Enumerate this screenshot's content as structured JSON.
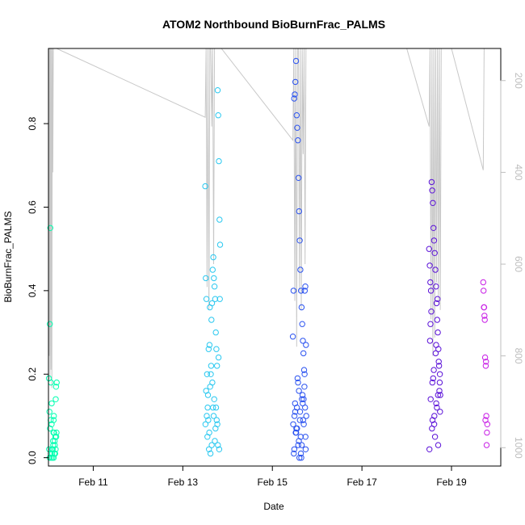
{
  "chart_data": {
    "type": "scatter",
    "title": "ATOM2 Northbound BioBurnFrac_PALMS",
    "xlabel": "Date",
    "ylabel": "BioBurnFrac_PALMS",
    "xlim": [
      "2017-02-10",
      "2017-02-20.1"
    ],
    "ylim": [
      -0.02,
      0.98
    ],
    "xticks": [
      {
        "value": "2017-02-11",
        "label": "Feb 11"
      },
      {
        "value": "2017-02-13",
        "label": "Feb 13"
      },
      {
        "value": "2017-02-15",
        "label": "Feb 15"
      },
      {
        "value": "2017-02-17",
        "label": "Feb 17"
      },
      {
        "value": "2017-02-19",
        "label": "Feb 19"
      }
    ],
    "yticks": [
      0.0,
      0.2,
      0.4,
      0.6,
      0.8
    ],
    "ytick_labels": [
      "0.0",
      "0.2",
      "0.4",
      "0.6",
      "0.8"
    ],
    "y2": {
      "quantity": "pressure",
      "range": [
        1040,
        130
      ],
      "ticks": [
        200,
        400,
        600,
        800,
        1000
      ],
      "tick_labels": [
        "200",
        "400",
        "600",
        "800",
        "1000"
      ],
      "color": "#bdbdbd"
    },
    "grid": false,
    "legend": "none",
    "series": [
      {
        "color": "#00ffb0",
        "x": [
          "2017-02-10T00:15",
          "2017-02-10T00:30",
          "2017-02-10T00:45",
          "2017-02-10T01:00",
          "2017-02-10T01:20",
          "2017-02-10T01:40",
          "2017-02-10T01:55",
          "2017-02-10T02:10",
          "2017-02-10T02:25",
          "2017-02-10T02:40",
          "2017-02-10T02:55",
          "2017-02-10T03:10",
          "2017-02-10T03:25",
          "2017-02-10T03:40",
          "2017-02-10T03:55",
          "2017-02-10T04:05",
          "2017-02-10T04:20",
          "2017-02-10T00:20",
          "2017-02-10T00:50",
          "2017-02-10T01:10",
          "2017-02-10T01:30",
          "2017-02-10T02:00",
          "2017-02-10T02:30",
          "2017-02-10T02:50",
          "2017-02-10T03:20",
          "2017-02-10T03:50",
          "2017-02-10T04:10",
          "2017-02-10T00:40",
          "2017-02-10T01:15",
          "2017-02-10T02:15",
          "2017-02-10T03:00",
          "2017-02-10T03:35",
          "2017-02-10T04:25",
          "2017-02-10T01:45",
          "2017-02-10T02:45"
        ],
        "y": [
          0.19,
          0.11,
          0.32,
          0.55,
          0.18,
          0.08,
          0.02,
          0.0,
          0.04,
          0.06,
          0.1,
          0.01,
          0.03,
          0.05,
          0.14,
          0.17,
          0.06,
          0.02,
          0.07,
          0.09,
          0.0,
          0.01,
          0.03,
          0.0,
          0.04,
          0.02,
          0.05,
          0.0,
          0.01,
          0.02,
          0.06,
          0.01,
          0.18,
          0.13,
          0.09
        ]
      },
      {
        "color": "#29c8f0",
        "x": [
          "2017-02-13T12:00",
          "2017-02-13T12:20",
          "2017-02-13T12:40",
          "2017-02-13T13:00",
          "2017-02-13T13:20",
          "2017-02-13T13:40",
          "2017-02-13T14:00",
          "2017-02-13T14:20",
          "2017-02-13T14:40",
          "2017-02-13T15:00",
          "2017-02-13T15:20",
          "2017-02-13T15:40",
          "2017-02-13T16:00",
          "2017-02-13T16:20",
          "2017-02-13T16:40",
          "2017-02-13T17:00",
          "2017-02-13T17:20",
          "2017-02-13T17:40",
          "2017-02-13T18:00",
          "2017-02-13T18:20",
          "2017-02-13T18:40",
          "2017-02-13T19:00",
          "2017-02-13T19:20",
          "2017-02-13T19:40",
          "2017-02-13T20:00",
          "2017-02-13T12:10",
          "2017-02-13T12:50",
          "2017-02-13T13:30",
          "2017-02-13T14:10",
          "2017-02-13T14:50",
          "2017-02-13T15:30",
          "2017-02-13T16:10",
          "2017-02-13T16:50",
          "2017-02-13T17:30",
          "2017-02-13T18:10",
          "2017-02-13T18:50",
          "2017-02-13T19:30",
          "2017-02-13T12:30",
          "2017-02-13T13:10",
          "2017-02-13T13:50",
          "2017-02-13T14:30",
          "2017-02-13T15:10",
          "2017-02-13T15:50",
          "2017-02-13T16:30",
          "2017-02-13T17:10",
          "2017-02-13T17:50",
          "2017-02-13T18:30",
          "2017-02-13T19:10",
          "2017-02-13T19:50"
        ],
        "y": [
          0.65,
          0.43,
          0.38,
          0.2,
          0.12,
          0.09,
          0.02,
          0.27,
          0.17,
          0.2,
          0.33,
          0.37,
          0.45,
          0.48,
          0.43,
          0.41,
          0.38,
          0.3,
          0.26,
          0.22,
          0.88,
          0.82,
          0.71,
          0.57,
          0.51,
          0.08,
          0.1,
          0.15,
          0.06,
          0.01,
          0.03,
          0.12,
          0.14,
          0.07,
          0.09,
          0.03,
          0.02,
          0.16,
          0.05,
          0.26,
          0.36,
          0.22,
          0.18,
          0.1,
          0.04,
          0.12,
          0.08,
          0.24,
          0.38
        ]
      },
      {
        "color": "#2a52f0",
        "x": [
          "2017-02-15T11:00",
          "2017-02-15T11:20",
          "2017-02-15T11:40",
          "2017-02-15T12:00",
          "2017-02-15T12:20",
          "2017-02-15T12:40",
          "2017-02-15T13:00",
          "2017-02-15T13:20",
          "2017-02-15T13:40",
          "2017-02-15T14:00",
          "2017-02-15T14:20",
          "2017-02-15T14:40",
          "2017-02-15T15:00",
          "2017-02-15T15:20",
          "2017-02-15T15:40",
          "2017-02-15T16:00",
          "2017-02-15T16:20",
          "2017-02-15T16:40",
          "2017-02-15T17:00",
          "2017-02-15T17:20",
          "2017-02-15T17:40",
          "2017-02-15T18:00",
          "2017-02-15T11:10",
          "2017-02-15T11:50",
          "2017-02-15T12:30",
          "2017-02-15T13:10",
          "2017-02-15T13:50",
          "2017-02-15T14:30",
          "2017-02-15T15:10",
          "2017-02-15T15:50",
          "2017-02-15T16:30",
          "2017-02-15T17:10",
          "2017-02-15T17:50",
          "2017-02-15T11:30",
          "2017-02-15T12:10",
          "2017-02-15T12:50",
          "2017-02-15T13:30",
          "2017-02-15T14:10",
          "2017-02-15T14:50",
          "2017-02-15T15:30",
          "2017-02-15T16:10",
          "2017-02-15T16:50",
          "2017-02-15T17:30",
          "2017-02-15T18:10",
          "2017-02-15T11:45",
          "2017-02-15T12:45",
          "2017-02-15T13:45",
          "2017-02-15T14:45",
          "2017-02-15T15:45",
          "2017-02-15T16:45",
          "2017-02-15T17:45",
          "2017-02-15T12:15",
          "2017-02-15T13:15",
          "2017-02-15T14:15",
          "2017-02-15T15:15",
          "2017-02-15T16:15",
          "2017-02-15T17:15"
        ],
        "y": [
          0.29,
          0.4,
          0.86,
          0.87,
          0.9,
          0.95,
          0.82,
          0.79,
          0.76,
          0.67,
          0.59,
          0.52,
          0.45,
          0.4,
          0.36,
          0.32,
          0.28,
          0.25,
          0.21,
          0.4,
          0.41,
          0.27,
          0.08,
          0.1,
          0.06,
          0.12,
          0.03,
          0.0,
          0.05,
          0.14,
          0.09,
          0.17,
          0.02,
          0.01,
          0.13,
          0.07,
          0.19,
          0.04,
          0.11,
          0.0,
          0.15,
          0.08,
          0.12,
          0.1,
          0.02,
          0.06,
          0.18,
          0.09,
          0.03,
          0.14,
          0.05,
          0.11,
          0.07,
          0.16,
          0.01,
          0.13,
          0.2
        ]
      },
      {
        "color": "#5a10d8",
        "x": [
          "2017-02-18T12:00",
          "2017-02-18T12:20",
          "2017-02-18T12:40",
          "2017-02-18T13:00",
          "2017-02-18T13:20",
          "2017-02-18T13:40",
          "2017-02-18T14:00",
          "2017-02-18T14:20",
          "2017-02-18T14:40",
          "2017-02-18T15:00",
          "2017-02-18T15:20",
          "2017-02-18T15:40",
          "2017-02-18T16:00",
          "2017-02-18T16:20",
          "2017-02-18T16:40",
          "2017-02-18T17:00",
          "2017-02-18T17:20",
          "2017-02-18T17:40",
          "2017-02-18T18:00",
          "2017-02-18T12:10",
          "2017-02-18T12:50",
          "2017-02-18T13:30",
          "2017-02-18T14:10",
          "2017-02-18T14:50",
          "2017-02-18T15:30",
          "2017-02-18T16:10",
          "2017-02-18T16:50",
          "2017-02-18T17:30",
          "2017-02-18T12:30",
          "2017-02-18T13:10",
          "2017-02-18T13:50",
          "2017-02-18T14:30",
          "2017-02-18T15:10",
          "2017-02-18T15:50",
          "2017-02-18T16:30",
          "2017-02-18T17:10",
          "2017-02-18T17:50",
          "2017-02-18T12:45",
          "2017-02-18T13:45",
          "2017-02-18T14:45",
          "2017-02-18T15:45",
          "2017-02-18T16:45",
          "2017-02-18T17:45"
        ],
        "y": [
          0.5,
          0.46,
          0.42,
          0.4,
          0.66,
          0.64,
          0.61,
          0.55,
          0.52,
          0.49,
          0.45,
          0.41,
          0.37,
          0.33,
          0.3,
          0.26,
          0.22,
          0.18,
          0.15,
          0.02,
          0.14,
          0.07,
          0.19,
          0.1,
          0.25,
          0.12,
          0.03,
          0.16,
          0.28,
          0.35,
          0.09,
          0.21,
          0.05,
          0.13,
          0.38,
          0.23,
          0.11,
          0.32,
          0.18,
          0.08,
          0.27,
          0.15,
          0.2
        ]
      },
      {
        "color": "#c81ee6",
        "x": [
          "2017-02-19T17:00",
          "2017-02-19T17:20",
          "2017-02-19T17:40",
          "2017-02-19T18:00",
          "2017-02-19T18:20",
          "2017-02-19T18:40",
          "2017-02-19T19:00",
          "2017-02-19T17:10",
          "2017-02-19T17:50",
          "2017-02-19T18:30",
          "2017-02-19T19:10",
          "2017-02-19T17:30",
          "2017-02-19T18:10",
          "2017-02-19T18:50"
        ],
        "y": [
          0.42,
          0.36,
          0.34,
          0.24,
          0.22,
          0.1,
          0.06,
          0.4,
          0.33,
          0.23,
          0.08,
          0.36,
          0.09,
          0.03
        ]
      }
    ],
    "pressure_line": {
      "color": "#c8c8c8",
      "x": [
        "2017-02-10T00:10",
        "2017-02-10T00:20",
        "2017-02-10T00:35",
        "2017-02-10T00:50",
        "2017-02-10T01:05",
        "2017-02-10T01:20",
        "2017-02-10T01:35",
        "2017-02-10T01:50",
        "2017-02-10T02:05",
        "2017-02-10T02:20",
        "2017-02-10T02:35",
        "2017-02-10T02:50",
        "2017-02-10T03:05",
        "2017-02-10T03:20",
        "2017-02-10T03:35",
        "2017-02-10T03:50",
        "2017-02-10T04:05",
        "2017-02-10T04:20",
        "2017-02-13T12:00",
        "2017-02-13T12:30",
        "2017-02-13T13:00",
        "2017-02-13T13:30",
        "2017-02-13T14:00",
        "2017-02-13T14:30",
        "2017-02-13T15:00",
        "2017-02-13T15:30",
        "2017-02-13T16:00",
        "2017-02-13T16:30",
        "2017-02-13T17:00",
        "2017-02-13T17:30",
        "2017-02-13T18:00",
        "2017-02-13T18:30",
        "2017-02-13T19:00",
        "2017-02-13T19:30",
        "2017-02-13T20:00",
        "2017-02-13T20:40",
        "2017-02-15T11:00",
        "2017-02-15T11:30",
        "2017-02-15T12:00",
        "2017-02-15T12:30",
        "2017-02-15T13:00",
        "2017-02-15T13:30",
        "2017-02-15T14:00",
        "2017-02-15T14:30",
        "2017-02-15T15:00",
        "2017-02-15T15:30",
        "2017-02-15T16:00",
        "2017-02-15T16:30",
        "2017-02-15T17:00",
        "2017-02-15T17:30",
        "2017-02-15T18:00",
        "2017-02-15T18:30",
        "2017-02-18T00:00",
        "2017-02-18T12:00",
        "2017-02-18T12:30",
        "2017-02-18T13:00",
        "2017-02-18T13:30",
        "2017-02-18T14:00",
        "2017-02-18T14:30",
        "2017-02-18T15:00",
        "2017-02-18T15:30",
        "2017-02-18T16:00",
        "2017-02-18T16:30",
        "2017-02-18T17:00",
        "2017-02-18T17:30",
        "2017-02-18T18:00",
        "2017-02-18T18:30",
        "2017-02-19T00:00",
        "2017-02-19T17:00",
        "2017-02-19T17:30"
      ],
      "y": [
        130,
        800,
        130,
        850,
        130,
        830,
        130,
        870,
        130,
        400,
        130,
        130,
        130,
        130,
        130,
        130,
        130,
        130,
        280,
        130,
        650,
        130,
        700,
        130,
        130,
        300,
        130,
        600,
        130,
        130,
        130,
        130,
        130,
        130,
        130,
        130,
        330,
        130,
        680,
        130,
        780,
        130,
        130,
        660,
        130,
        700,
        130,
        360,
        130,
        600,
        130,
        130,
        130,
        300,
        130,
        720,
        130,
        800,
        130,
        760,
        130,
        640,
        130,
        680,
        130,
        700,
        130,
        130,
        395,
        130
      ]
    }
  }
}
